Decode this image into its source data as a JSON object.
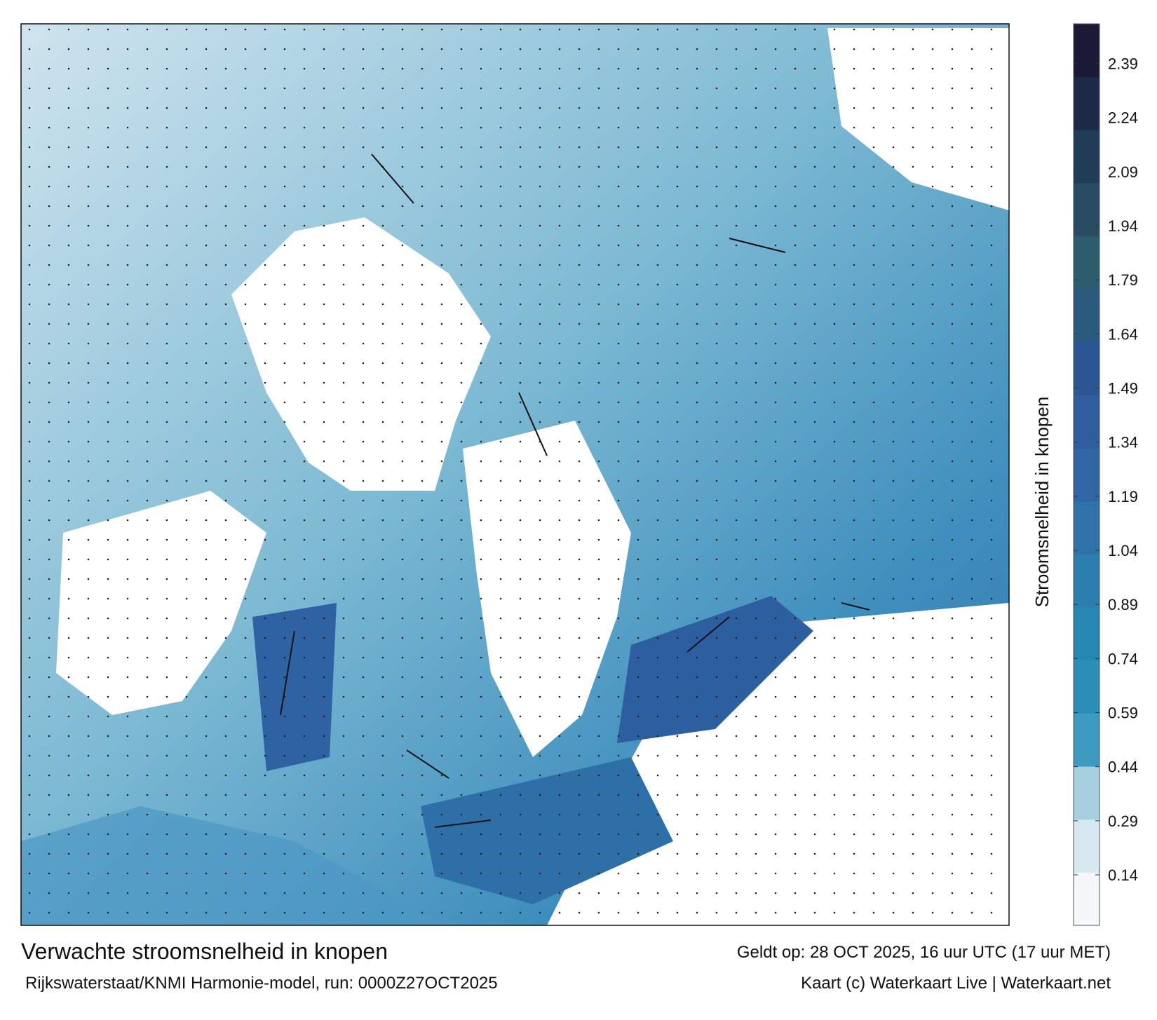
{
  "map": {
    "title": "Verwachte stroomsnelheid in knopen",
    "subtitle": "Rijkswaterstaat/KNMI Harmonie-model, run: 0000Z27OCT2025",
    "valid_time": "Geldt op: 28 OCT 2025, 16 uur UTC (17 uur MET)",
    "credit": "Kaart (c) Waterkaart Live | Waterkaart.net",
    "colorbar": {
      "label": "Stroomsnelheid in knopen",
      "lim": [
        0,
        2.5
      ],
      "ticks": [
        0.14,
        0.29,
        0.44,
        0.59,
        0.74,
        0.89,
        1.04,
        1.19,
        1.34,
        1.49,
        1.64,
        1.79,
        1.94,
        2.09,
        2.24,
        2.39
      ],
      "colors": [
        "#f4f8fb",
        "#d6e8f0",
        "#a8cfe0",
        "#3d9bc0",
        "#2a8eb8",
        "#2687b3",
        "#2b7eae",
        "#2e72a9",
        "#3066a5",
        "#2f5da0",
        "#2c5593",
        "#2b5a7f",
        "#2d5d6c",
        "#294b63",
        "#213c56",
        "#1c2a48",
        "#1a1a38"
      ]
    }
  }
}
